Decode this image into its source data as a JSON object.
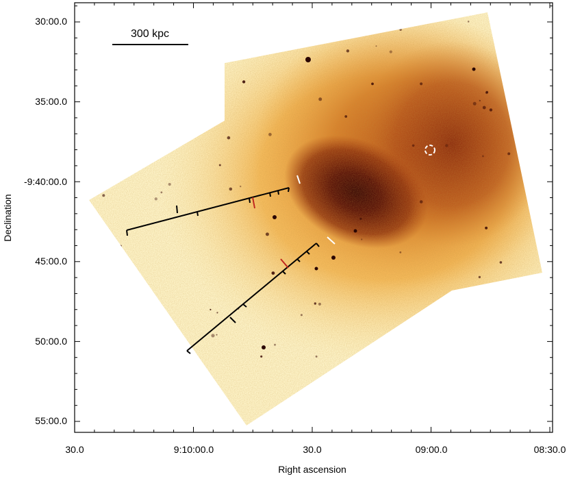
{
  "axes": {
    "xlabel": "Right ascension",
    "ylabel": "Declination",
    "x_ticks": [
      "30.0",
      "9:10:00.0",
      "30.0",
      "09:00.0",
      "08:30.0"
    ],
    "y_ticks": [
      "30:00.0",
      "35:00.0",
      "-9:40:00.0",
      "45:00.0",
      "50:00.0",
      "55:00.0"
    ]
  },
  "scale_bar": {
    "label": "300 kpc"
  },
  "colors": {
    "background": "#ffffff",
    "faint": "#fff6cc",
    "emission_low": "#f4b24a",
    "emission_mid": "#c8661a",
    "core": "#4a0e06",
    "profile_line": "#000000",
    "edge_tick": "#c0261e",
    "marker": "#ffffff"
  },
  "icons": [
    "dashed-circle-marker"
  ]
}
